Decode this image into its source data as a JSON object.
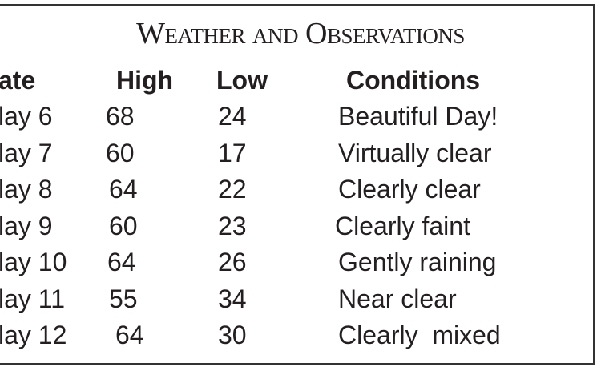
{
  "title": "Weather and Observations",
  "table": {
    "header": [
      "ate",
      "High",
      "Low",
      "Conditions"
    ],
    "rows": [
      [
        "lay 6",
        68,
        24,
        "Beautiful Day!"
      ],
      [
        "lay 7",
        60,
        17,
        "Virtually clear"
      ],
      [
        "lay 8",
        64,
        22,
        "Clearly clear"
      ],
      [
        "lay 9",
        60,
        23,
        "Clearly faint"
      ],
      [
        "lay 10",
        64,
        26,
        "Gently raining"
      ],
      [
        "lay 11",
        55,
        34,
        "Near clear"
      ],
      [
        "lay 12",
        64,
        30,
        "Clearly  mixed"
      ]
    ]
  }
}
